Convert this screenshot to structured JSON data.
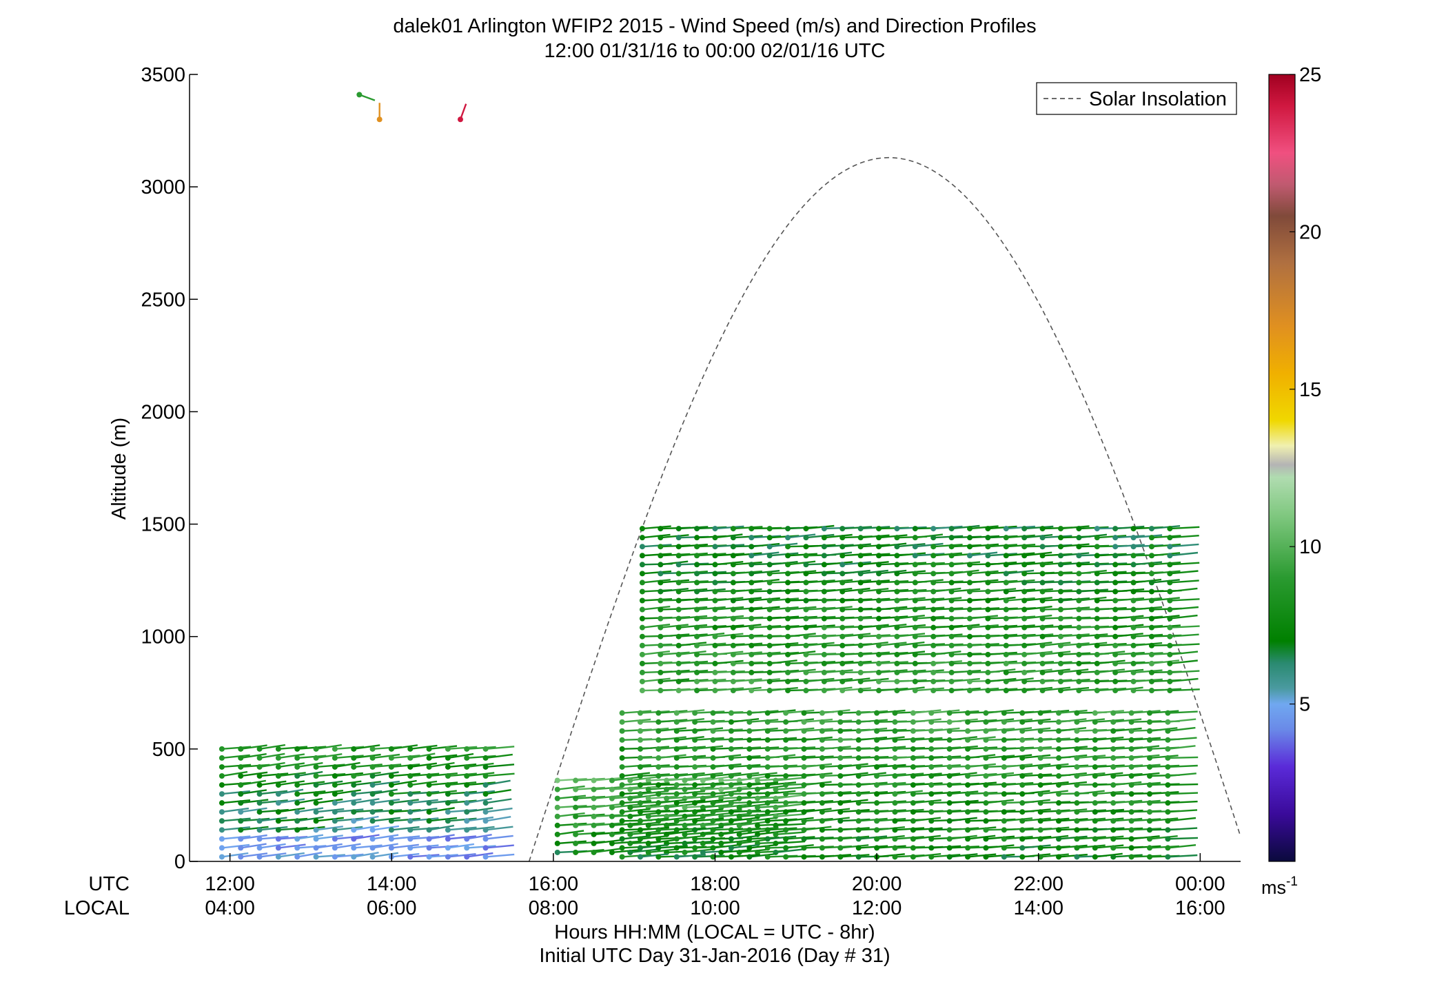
{
  "chart_data": {
    "type": "wind-barb-profile",
    "title": "dalek01 Arlington WFIP2 2015 - Wind Speed (m/s) and Direction Profiles",
    "subtitle": "12:00 01/31/16 to 00:00 02/01/16  UTC",
    "ylabel": "Altitude (m)",
    "xlabel": "Hours HH:MM  (LOCAL = UTC - 8hr)",
    "xlabel2": "Initial UTC Day 31-Jan-2016 (Day # 31)",
    "ylim": [
      0,
      3500
    ],
    "xlim_hours_utc": [
      11.5,
      24.5
    ],
    "yticks": [
      0,
      500,
      1000,
      1500,
      2000,
      2500,
      3000,
      3500
    ],
    "row_labels": {
      "utc": "UTC",
      "local": "LOCAL"
    },
    "xticks_utc": [
      "12:00",
      "14:00",
      "16:00",
      "18:00",
      "20:00",
      "22:00",
      "00:00"
    ],
    "xticks_local": [
      "04:00",
      "06:00",
      "08:00",
      "10:00",
      "12:00",
      "14:00",
      "16:00"
    ],
    "legend": {
      "label": "Solar Insolation",
      "style": "dashed",
      "color": "#555555",
      "placement": "top-right"
    },
    "insolation_curve": {
      "start_hour": 15.7,
      "end_hour": 24.5,
      "peak_hour": 20.15,
      "peak_altitude": 3130
    },
    "colorbar": {
      "unit": "ms",
      "unit_exp": "-1",
      "range": [
        0,
        25
      ],
      "ticks": [
        5,
        10,
        15,
        20,
        25
      ],
      "stops": [
        {
          "v": 0,
          "c": "#0a0a3c"
        },
        {
          "v": 1.5,
          "c": "#3a0a9a"
        },
        {
          "v": 3,
          "c": "#5a2ad8"
        },
        {
          "v": 4.2,
          "c": "#6a8ae8"
        },
        {
          "v": 5,
          "c": "#70a8f0"
        },
        {
          "v": 5.5,
          "c": "#4a9aa0"
        },
        {
          "v": 6.3,
          "c": "#2a8a70"
        },
        {
          "v": 7,
          "c": "#008000"
        },
        {
          "v": 9,
          "c": "#2a9a30"
        },
        {
          "v": 11,
          "c": "#80c880"
        },
        {
          "v": 12.2,
          "c": "#b0dcb0"
        },
        {
          "v": 12.6,
          "c": "#b4b4b4"
        },
        {
          "v": 13.2,
          "c": "#f0f0b0"
        },
        {
          "v": 14,
          "c": "#f0d800"
        },
        {
          "v": 15.5,
          "c": "#f0b000"
        },
        {
          "v": 17,
          "c": "#e09020"
        },
        {
          "v": 19,
          "c": "#b07040"
        },
        {
          "v": 20.5,
          "c": "#804a3a"
        },
        {
          "v": 21.5,
          "c": "#c05a70"
        },
        {
          "v": 22.5,
          "c": "#f05080"
        },
        {
          "v": 24,
          "c": "#d01840"
        },
        {
          "v": 25,
          "c": "#a00020"
        }
      ]
    },
    "blocks": [
      {
        "t0": 11.9,
        "t1": 15.25,
        "dt": 0.233,
        "alts": [
          20,
          60,
          100,
          140,
          180,
          220,
          260,
          300,
          340,
          380,
          420,
          460,
          500
        ],
        "speed_low": 5,
        "speed_high": 8.5,
        "dir": 245,
        "low_color_speed": 4.5
      },
      {
        "t0": 16.05,
        "t1": 18.85,
        "dt": 0.225,
        "alts": [
          40,
          80,
          120,
          160,
          200,
          240,
          280,
          320,
          360
        ],
        "speed_low": 7.5,
        "speed_high": 10,
        "dir": 250
      },
      {
        "t0": 16.85,
        "t1": 23.8,
        "dt": 0.225,
        "alts": [
          20,
          60,
          100,
          140,
          180,
          220,
          260,
          300,
          340,
          380,
          420,
          460,
          500,
          540,
          580,
          620,
          660
        ],
        "speed_low": 7.5,
        "speed_high": 9,
        "dir": 255
      },
      {
        "t0": 17.1,
        "t1": 23.8,
        "dt": 0.225,
        "alts": [
          760,
          800,
          840,
          880,
          920,
          960,
          1000,
          1040,
          1080,
          1120,
          1160,
          1200,
          1240,
          1280,
          1320,
          1360,
          1400,
          1440,
          1480
        ],
        "speed_low": 9,
        "speed_high": 7,
        "dir": 255
      }
    ],
    "sparse_barbs": [
      {
        "hour": 13.6,
        "alt": 3410,
        "speed": 9,
        "dir": 290
      },
      {
        "hour": 13.85,
        "alt": 3300,
        "speed": 17,
        "dir": 180
      },
      {
        "hour": 14.85,
        "alt": 3300,
        "speed": 24,
        "dir": 200
      }
    ]
  }
}
